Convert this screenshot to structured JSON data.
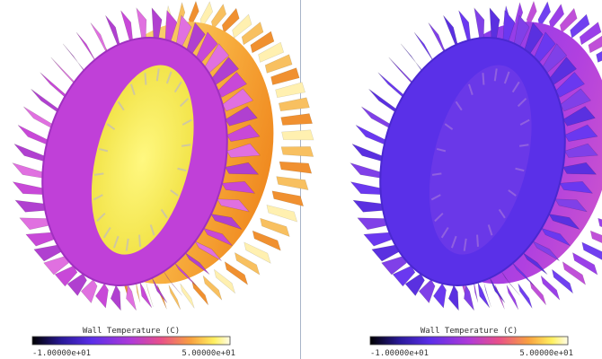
{
  "panels": [
    {
      "legend": {
        "title": "Wall Temperature (C)",
        "min_label": "-1.00000e+01",
        "max_label": "5.00000e+01"
      }
    },
    {
      "legend": {
        "title": "Wall Temperature (C)",
        "min_label": "-1.00000e+01",
        "max_label": "5.00000e+01"
      }
    }
  ]
}
